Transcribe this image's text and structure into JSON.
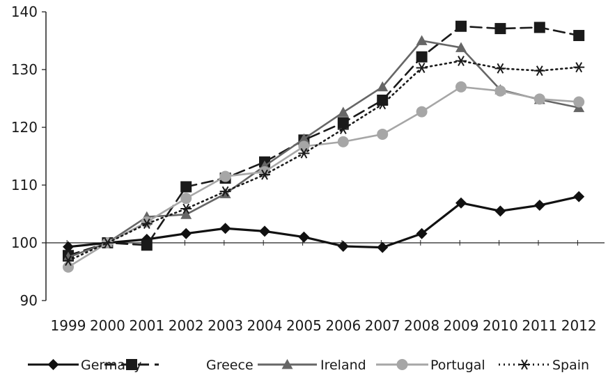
{
  "chart_data": {
    "type": "line",
    "title": "",
    "xlabel": "",
    "ylabel": "",
    "categories": [
      "1999",
      "2000",
      "2001",
      "2002",
      "2003",
      "2004",
      "2005",
      "2006",
      "2007",
      "2008",
      "2009",
      "2010",
      "2011",
      "2012"
    ],
    "ylim": [
      90,
      140
    ],
    "yticks": [
      90,
      100,
      110,
      120,
      130,
      140
    ],
    "grid": false,
    "legend_position": "bottom",
    "series": [
      {
        "name": "Germany",
        "color": "#111111",
        "style": "solid",
        "marker": "diamond",
        "values": [
          99.3,
          100,
          100.6,
          101.6,
          102.5,
          102.0,
          101.0,
          99.4,
          99.2,
          101.6,
          106.9,
          105.5,
          106.5,
          108.0
        ]
      },
      {
        "name": "Greece",
        "color": "#1a1a1a",
        "style": "dashed",
        "marker": "square",
        "values": [
          97.8,
          100,
          99.6,
          109.7,
          111.2,
          114.0,
          117.8,
          120.8,
          124.7,
          132.2,
          137.5,
          137.1,
          137.3,
          135.9
        ]
      },
      {
        "name": "Ireland",
        "color": "#666666",
        "style": "solid",
        "marker": "triangle",
        "values": [
          97.5,
          100,
          104.5,
          104.9,
          108.5,
          113.3,
          118.0,
          122.6,
          127.0,
          135.0,
          133.8,
          126.5,
          124.8,
          123.4
        ]
      },
      {
        "name": "Portugal",
        "color": "#a6a6a6",
        "style": "solid",
        "marker": "circle",
        "values": [
          95.8,
          100,
          103.6,
          107.7,
          111.5,
          112.3,
          116.7,
          117.5,
          118.8,
          122.7,
          127.0,
          126.3,
          124.9,
          124.4
        ]
      },
      {
        "name": "Spain",
        "color": "#1a1a1a",
        "style": "dotted",
        "marker": "asterisk",
        "values": [
          96.9,
          100,
          103.3,
          105.9,
          108.9,
          111.8,
          115.5,
          119.7,
          124.0,
          130.3,
          131.5,
          130.2,
          129.8,
          130.4
        ]
      }
    ]
  }
}
